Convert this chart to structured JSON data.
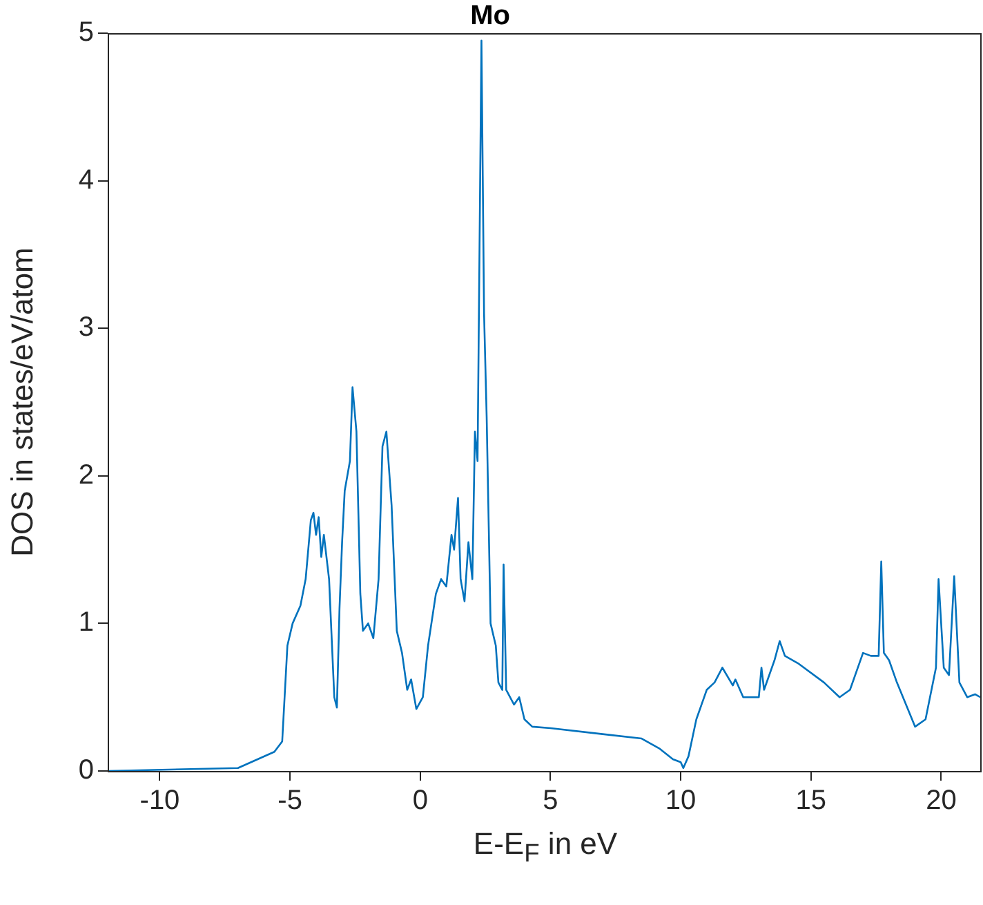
{
  "chart_data": {
    "type": "line",
    "title": "Mo",
    "xlabel": "E-E$_{F}$ in eV",
    "ylabel": "DOS in states/eV/atom",
    "xlim": [
      -12,
      21.5
    ],
    "xticks": [
      -10,
      -5,
      0,
      5,
      10,
      15,
      20
    ],
    "ylim": [
      0,
      5
    ],
    "yticks": [
      0,
      1,
      2,
      3,
      4,
      5
    ],
    "grid": false,
    "legend": false,
    "marker": "none",
    "line_style": "solid",
    "series": [
      {
        "color": "#0072bd",
        "x": [
          -12,
          -7,
          -5.6,
          -5.3,
          -5.1,
          -4.9,
          -4.6,
          -4.4,
          -4.2,
          -4.1,
          -4.0,
          -3.9,
          -3.8,
          -3.7,
          -3.5,
          -3.3,
          -3.2,
          -3.1,
          -3.0,
          -2.9,
          -2.7,
          -2.6,
          -2.45,
          -2.3,
          -2.2,
          -2.0,
          -1.8,
          -1.6,
          -1.45,
          -1.3,
          -1.1,
          -0.9,
          -0.7,
          -0.5,
          -0.35,
          -0.25,
          -0.15,
          0.1,
          0.3,
          0.6,
          0.8,
          1.0,
          1.2,
          1.3,
          1.45,
          1.55,
          1.7,
          1.85,
          2.0,
          2.1,
          2.2,
          2.35,
          2.45,
          2.55,
          2.7,
          2.9,
          3.0,
          3.15,
          3.2,
          3.3,
          3.6,
          3.8,
          4.0,
          4.3,
          5,
          7,
          8.5,
          9.2,
          9.7,
          10.0,
          10.1,
          10.3,
          10.6,
          11.0,
          11.3,
          11.6,
          12.0,
          12.1,
          12.4,
          13.0,
          13.1,
          13.2,
          13.6,
          13.8,
          14.0,
          14.5,
          15.5,
          16.1,
          16.5,
          17.0,
          17.3,
          17.6,
          17.7,
          17.8,
          18.0,
          18.3,
          19.0,
          19.4,
          19.8,
          19.9,
          20.1,
          20.3,
          20.5,
          20.7,
          21.0,
          21.3,
          21.5
        ],
        "values": [
          0,
          0.02,
          0.13,
          0.2,
          0.85,
          1.0,
          1.12,
          1.3,
          1.7,
          1.75,
          1.6,
          1.72,
          1.45,
          1.6,
          1.3,
          0.5,
          0.43,
          1.1,
          1.55,
          1.9,
          2.1,
          2.6,
          2.3,
          1.2,
          0.95,
          1.0,
          0.9,
          1.3,
          2.2,
          2.3,
          1.8,
          0.95,
          0.8,
          0.55,
          0.62,
          0.52,
          0.42,
          0.5,
          0.85,
          1.2,
          1.3,
          1.25,
          1.6,
          1.5,
          1.85,
          1.3,
          1.15,
          1.55,
          1.3,
          2.3,
          2.1,
          4.95,
          3.1,
          2.4,
          1.0,
          0.85,
          0.6,
          0.55,
          1.4,
          0.55,
          0.45,
          0.5,
          0.35,
          0.3,
          0.29,
          0.25,
          0.22,
          0.15,
          0.08,
          0.06,
          0.02,
          0.1,
          0.35,
          0.55,
          0.6,
          0.7,
          0.58,
          0.62,
          0.5,
          0.5,
          0.7,
          0.55,
          0.75,
          0.88,
          0.78,
          0.73,
          0.6,
          0.5,
          0.55,
          0.8,
          0.78,
          0.78,
          1.42,
          0.8,
          0.75,
          0.6,
          0.3,
          0.35,
          0.7,
          1.3,
          0.7,
          0.65,
          1.32,
          0.6,
          0.5,
          0.52,
          0.5
        ]
      }
    ]
  }
}
